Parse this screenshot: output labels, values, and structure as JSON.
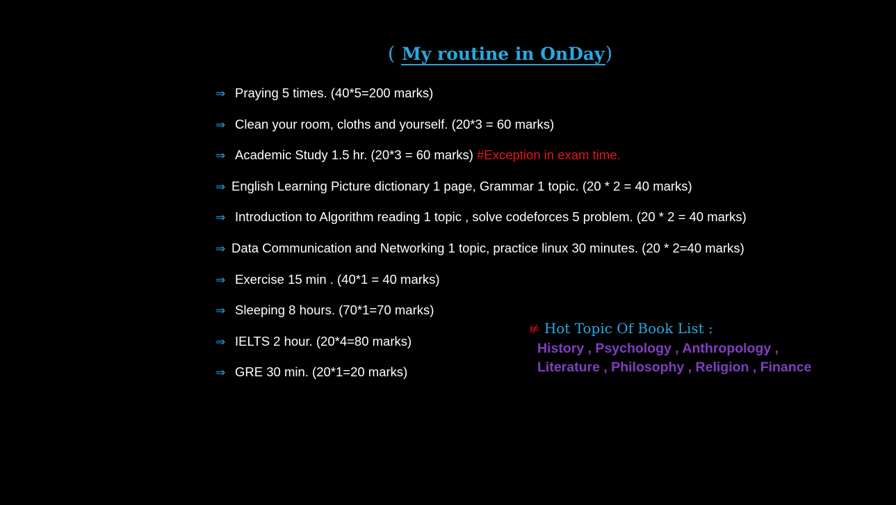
{
  "title": {
    "open_paren": "(",
    "text": "My routine in OnDay",
    "close_paren": ")"
  },
  "routine_items": [
    {
      "text": "Praying 5 times.  (40*5=200 marks)",
      "note": ""
    },
    {
      "text": "Clean your room, cloths and yourself. (20*3 = 60 marks)",
      "note": ""
    },
    {
      "text": "Academic Study 1.5 hr. (20*3 = 60 marks) ",
      "note": "#Exception in exam time."
    },
    {
      "text": "English Learning Picture dictionary 1 page, Grammar 1 topic. (20 * 2 = 40 marks)",
      "note": ""
    },
    {
      "text": "Introduction to Algorithm reading 1 topic , solve codeforces 5 problem. (20 * 2 = 40 marks)",
      "note": ""
    },
    {
      "text": "Data Communication and Networking 1 topic, practice linux 30 minutes. (20 * 2=40 marks)",
      "note": ""
    },
    {
      "text": "Exercise 15 min . (40*1 = 40 marks)",
      "note": ""
    },
    {
      "text": "Sleeping 8 hours. (70*1=70 marks)",
      "note": ""
    },
    {
      "text": "IELTS 2 hour. (20*4=80 marks)",
      "note": ""
    },
    {
      "text": "GRE 30 min. (20*1=20 marks)",
      "note": ""
    }
  ],
  "bullet_symbol": "⇒",
  "books": {
    "symbol": "⊭",
    "heading": "Hot Topic Of Book List :",
    "line1": "History , Psychology ,  Anthropology ,",
    "line2": "Literature , Philosophy , Religion , Finance"
  },
  "colors": {
    "background": "#000000",
    "accent_blue": "#29a8e0",
    "text_white": "#ffffff",
    "exception_red": "#e8141c",
    "books_purple": "#7e3fbf"
  },
  "icons": {
    "bullet": "right-double-arrow-icon",
    "books_marker": "does-not-satisfy-icon"
  }
}
